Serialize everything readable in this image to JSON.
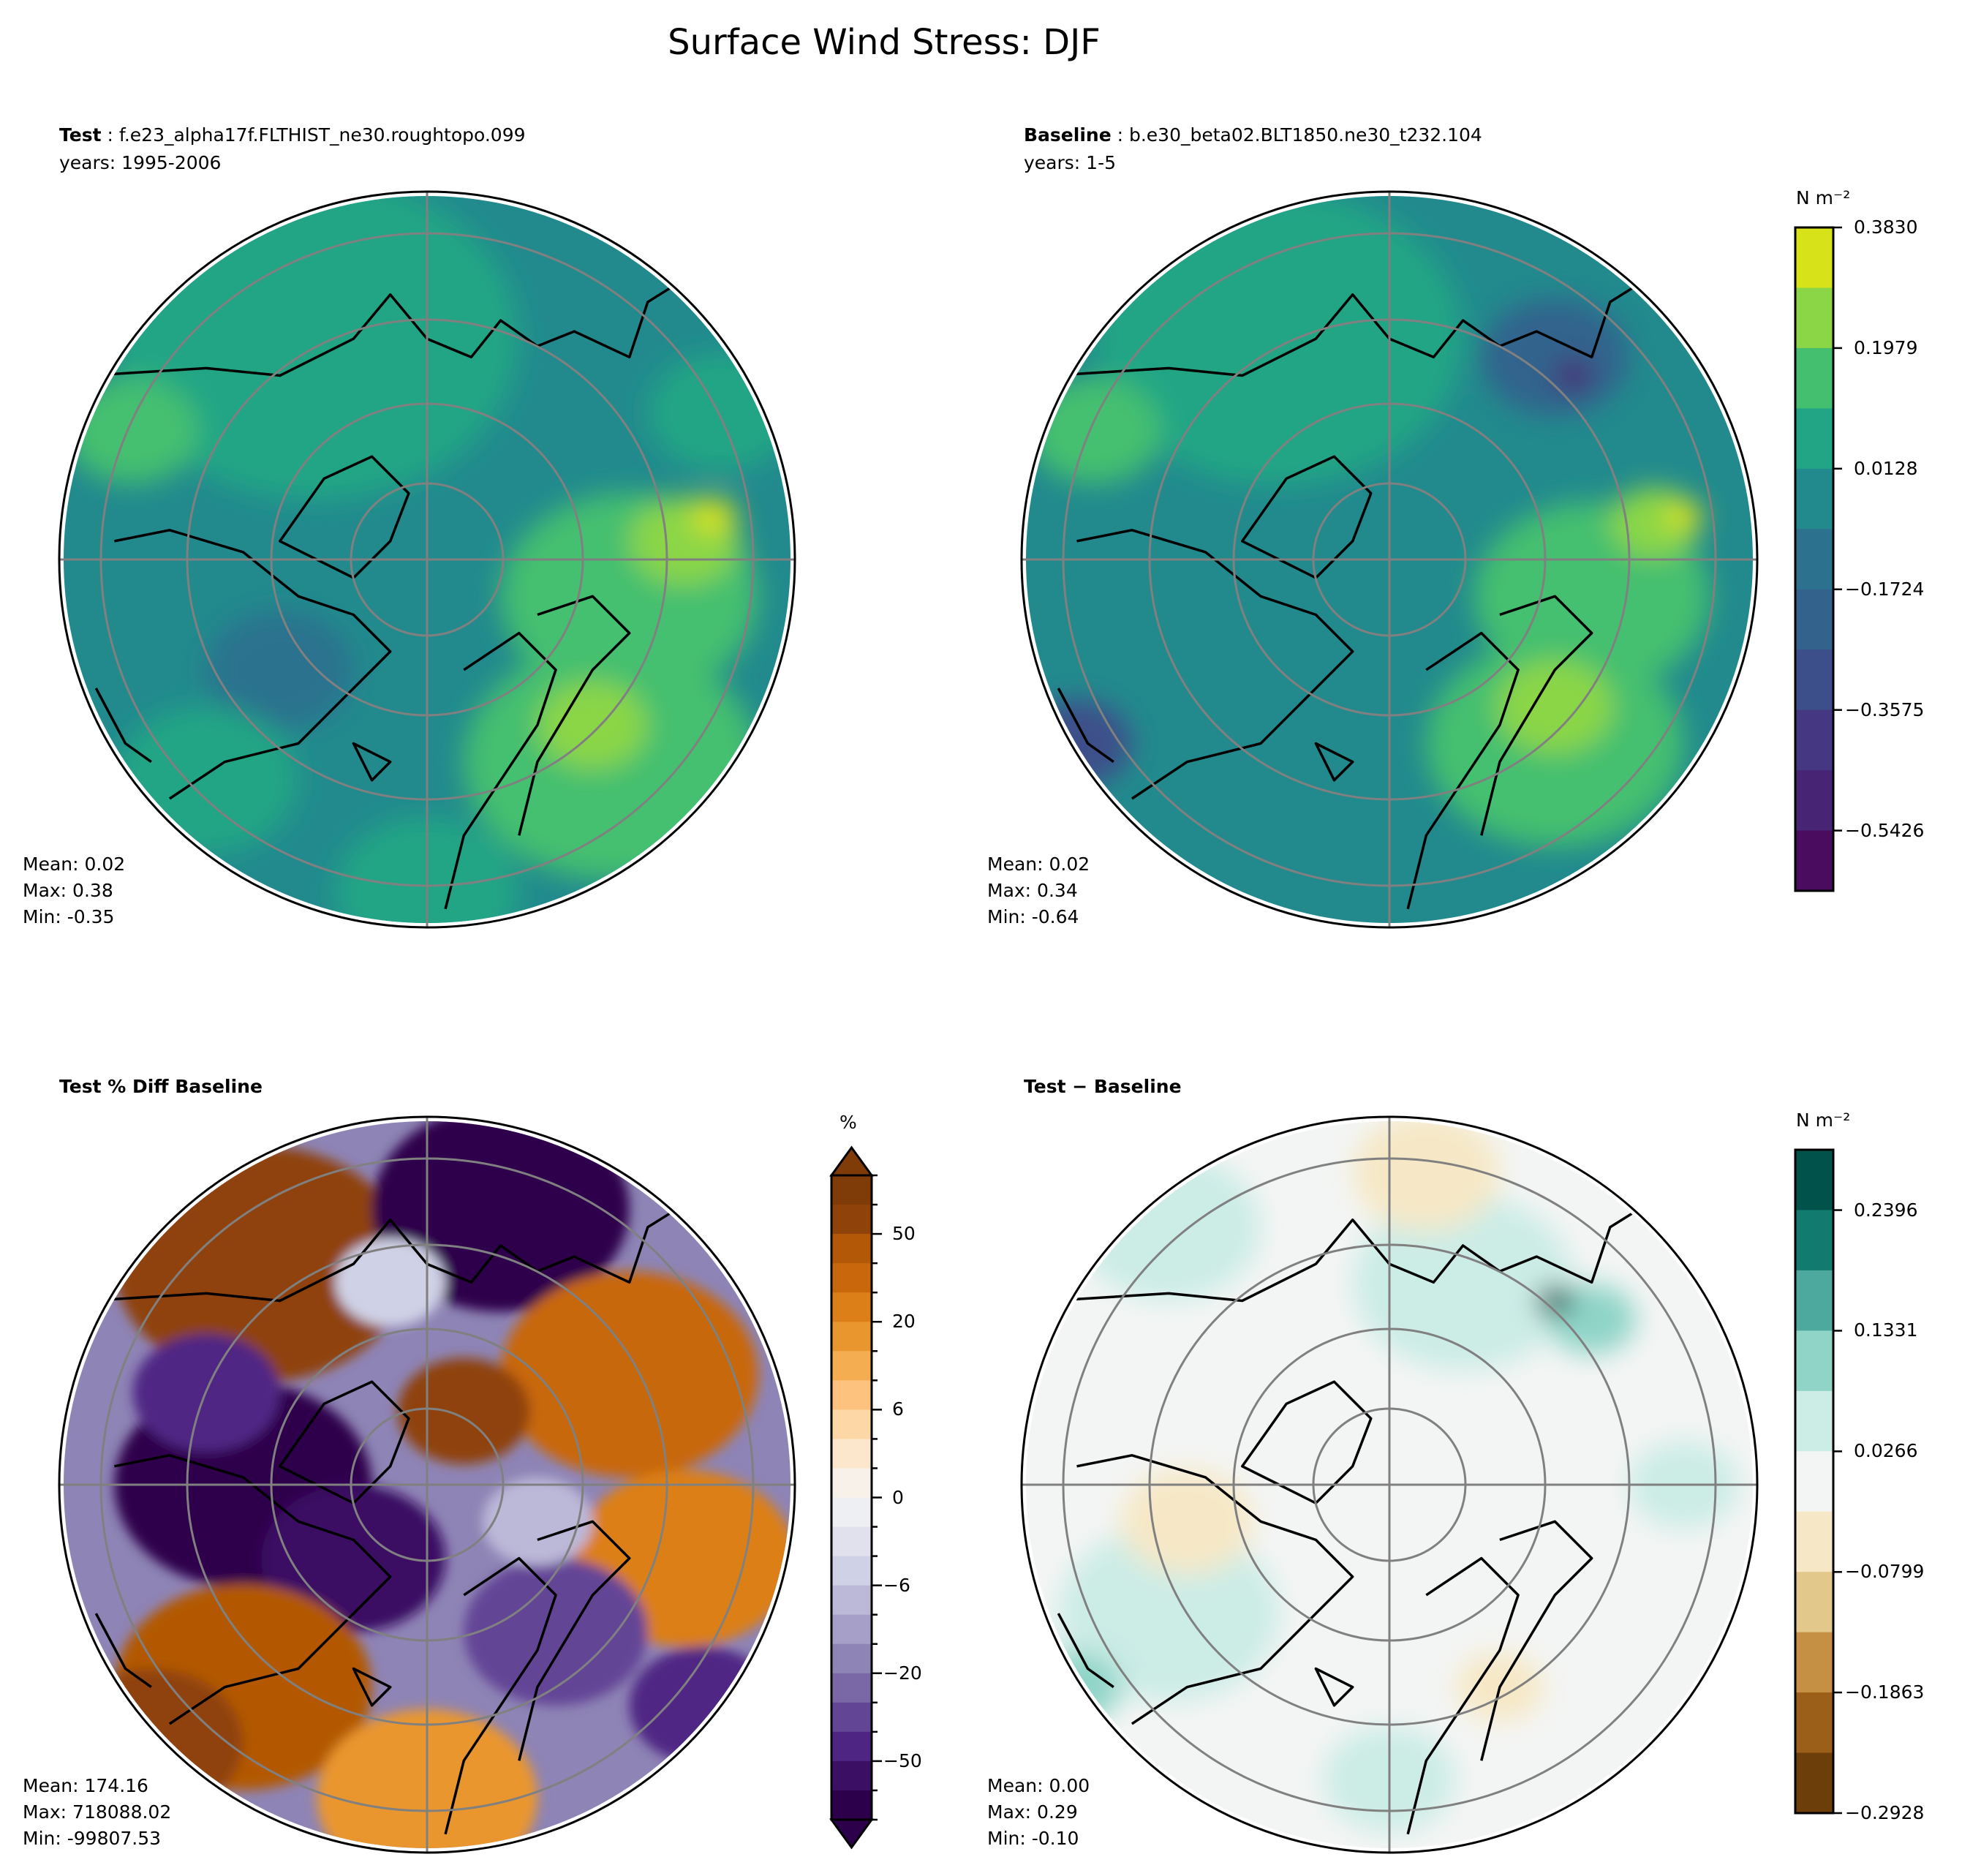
{
  "title": "Surface Wind Stress: DJF",
  "panels": {
    "test": {
      "label": "Test",
      "case": "f.e23_alpha17f.FLTHIST_ne30.roughtopo.099",
      "years": "years: 1995-2006",
      "stats": {
        "mean": "Mean:  0.02",
        "max": "Max:  0.38",
        "min": "Min: -0.35"
      }
    },
    "baseline": {
      "label": "Baseline",
      "case": "b.e30_beta02.BLT1850.ne30_t232.104",
      "years": "years: 1-5",
      "stats": {
        "mean": "Mean:  0.02",
        "max": "Max:  0.34",
        "min": "Min: -0.64"
      }
    },
    "pctdiff": {
      "label": "Test % Diff Baseline",
      "stats": {
        "mean": "Mean: 174.16",
        "max": "Max: 718088.02",
        "min": "Min: -99807.53"
      }
    },
    "diff": {
      "label": "Test − Baseline",
      "stats": {
        "mean": "Mean:  0.00",
        "max": "Max:  0.29",
        "min": "Min: -0.10"
      }
    }
  },
  "chart_data": [
    {
      "type": "heatmap",
      "projection": "north-polar-stereographic",
      "panels": [
        "Test",
        "Baseline"
      ],
      "colorbar": {
        "label": "N m⁻²",
        "colormap": "viridis",
        "range": [
          -0.6351,
          0.383
        ],
        "ticks": [
          "0.3830",
          "0.1979",
          "0.0128",
          "−0.1724",
          "−0.3575",
          "−0.5426"
        ],
        "tick_values": [
          0.383,
          0.1979,
          0.0128,
          -0.1724,
          -0.3575,
          -0.5426
        ],
        "colors": [
          "#d8e219",
          "#8bd646",
          "#44bf70",
          "#21a585",
          "#228a8d",
          "#2c728e",
          "#33638d",
          "#3c4f8a",
          "#453781",
          "#482475",
          "#4a0c5e"
        ]
      }
    },
    {
      "type": "heatmap",
      "projection": "north-polar-stereographic",
      "panels": [
        "Test % Diff Baseline"
      ],
      "colorbar": {
        "label": "%",
        "colormap": "PuOr",
        "extend": "both",
        "ticks": [
          "50",
          "20",
          "6",
          "0",
          "−6",
          "−20",
          "−50"
        ],
        "colors": [
          "#7f3b08",
          "#8f4209",
          "#b35806",
          "#c8670b",
          "#dc7f18",
          "#ea962f",
          "#f5ad52",
          "#fdc27d",
          "#fdd8a6",
          "#fde7cc",
          "#f8f1e9",
          "#eeeff3",
          "#e0e1ec",
          "#cfd1e6",
          "#bcb8d8",
          "#a69fc8",
          "#8e84b5",
          "#7a67a6",
          "#634596",
          "#4f2584",
          "#3b0f63",
          "#2d004b"
        ]
      }
    },
    {
      "type": "heatmap",
      "projection": "north-polar-stereographic",
      "panels": [
        "Test − Baseline"
      ],
      "colorbar": {
        "label": "N m⁻²",
        "colormap": "BrBG",
        "range": [
          -0.2928,
          0.2929
        ],
        "ticks": [
          "0.2396",
          "0.1331",
          "0.0266",
          "−0.0799",
          "−0.1863",
          "−0.2928"
        ],
        "tick_values": [
          0.2396,
          0.1331,
          0.0266,
          -0.0799,
          -0.1863,
          -0.2928
        ],
        "colors": [
          "#00524a",
          "#137a70",
          "#4da89e",
          "#8fd4c7",
          "#ccece6",
          "#f3f5f4",
          "#f6e8c6",
          "#e2c98b",
          "#c69044",
          "#9c5f19",
          "#6b3e0a"
        ]
      }
    }
  ]
}
